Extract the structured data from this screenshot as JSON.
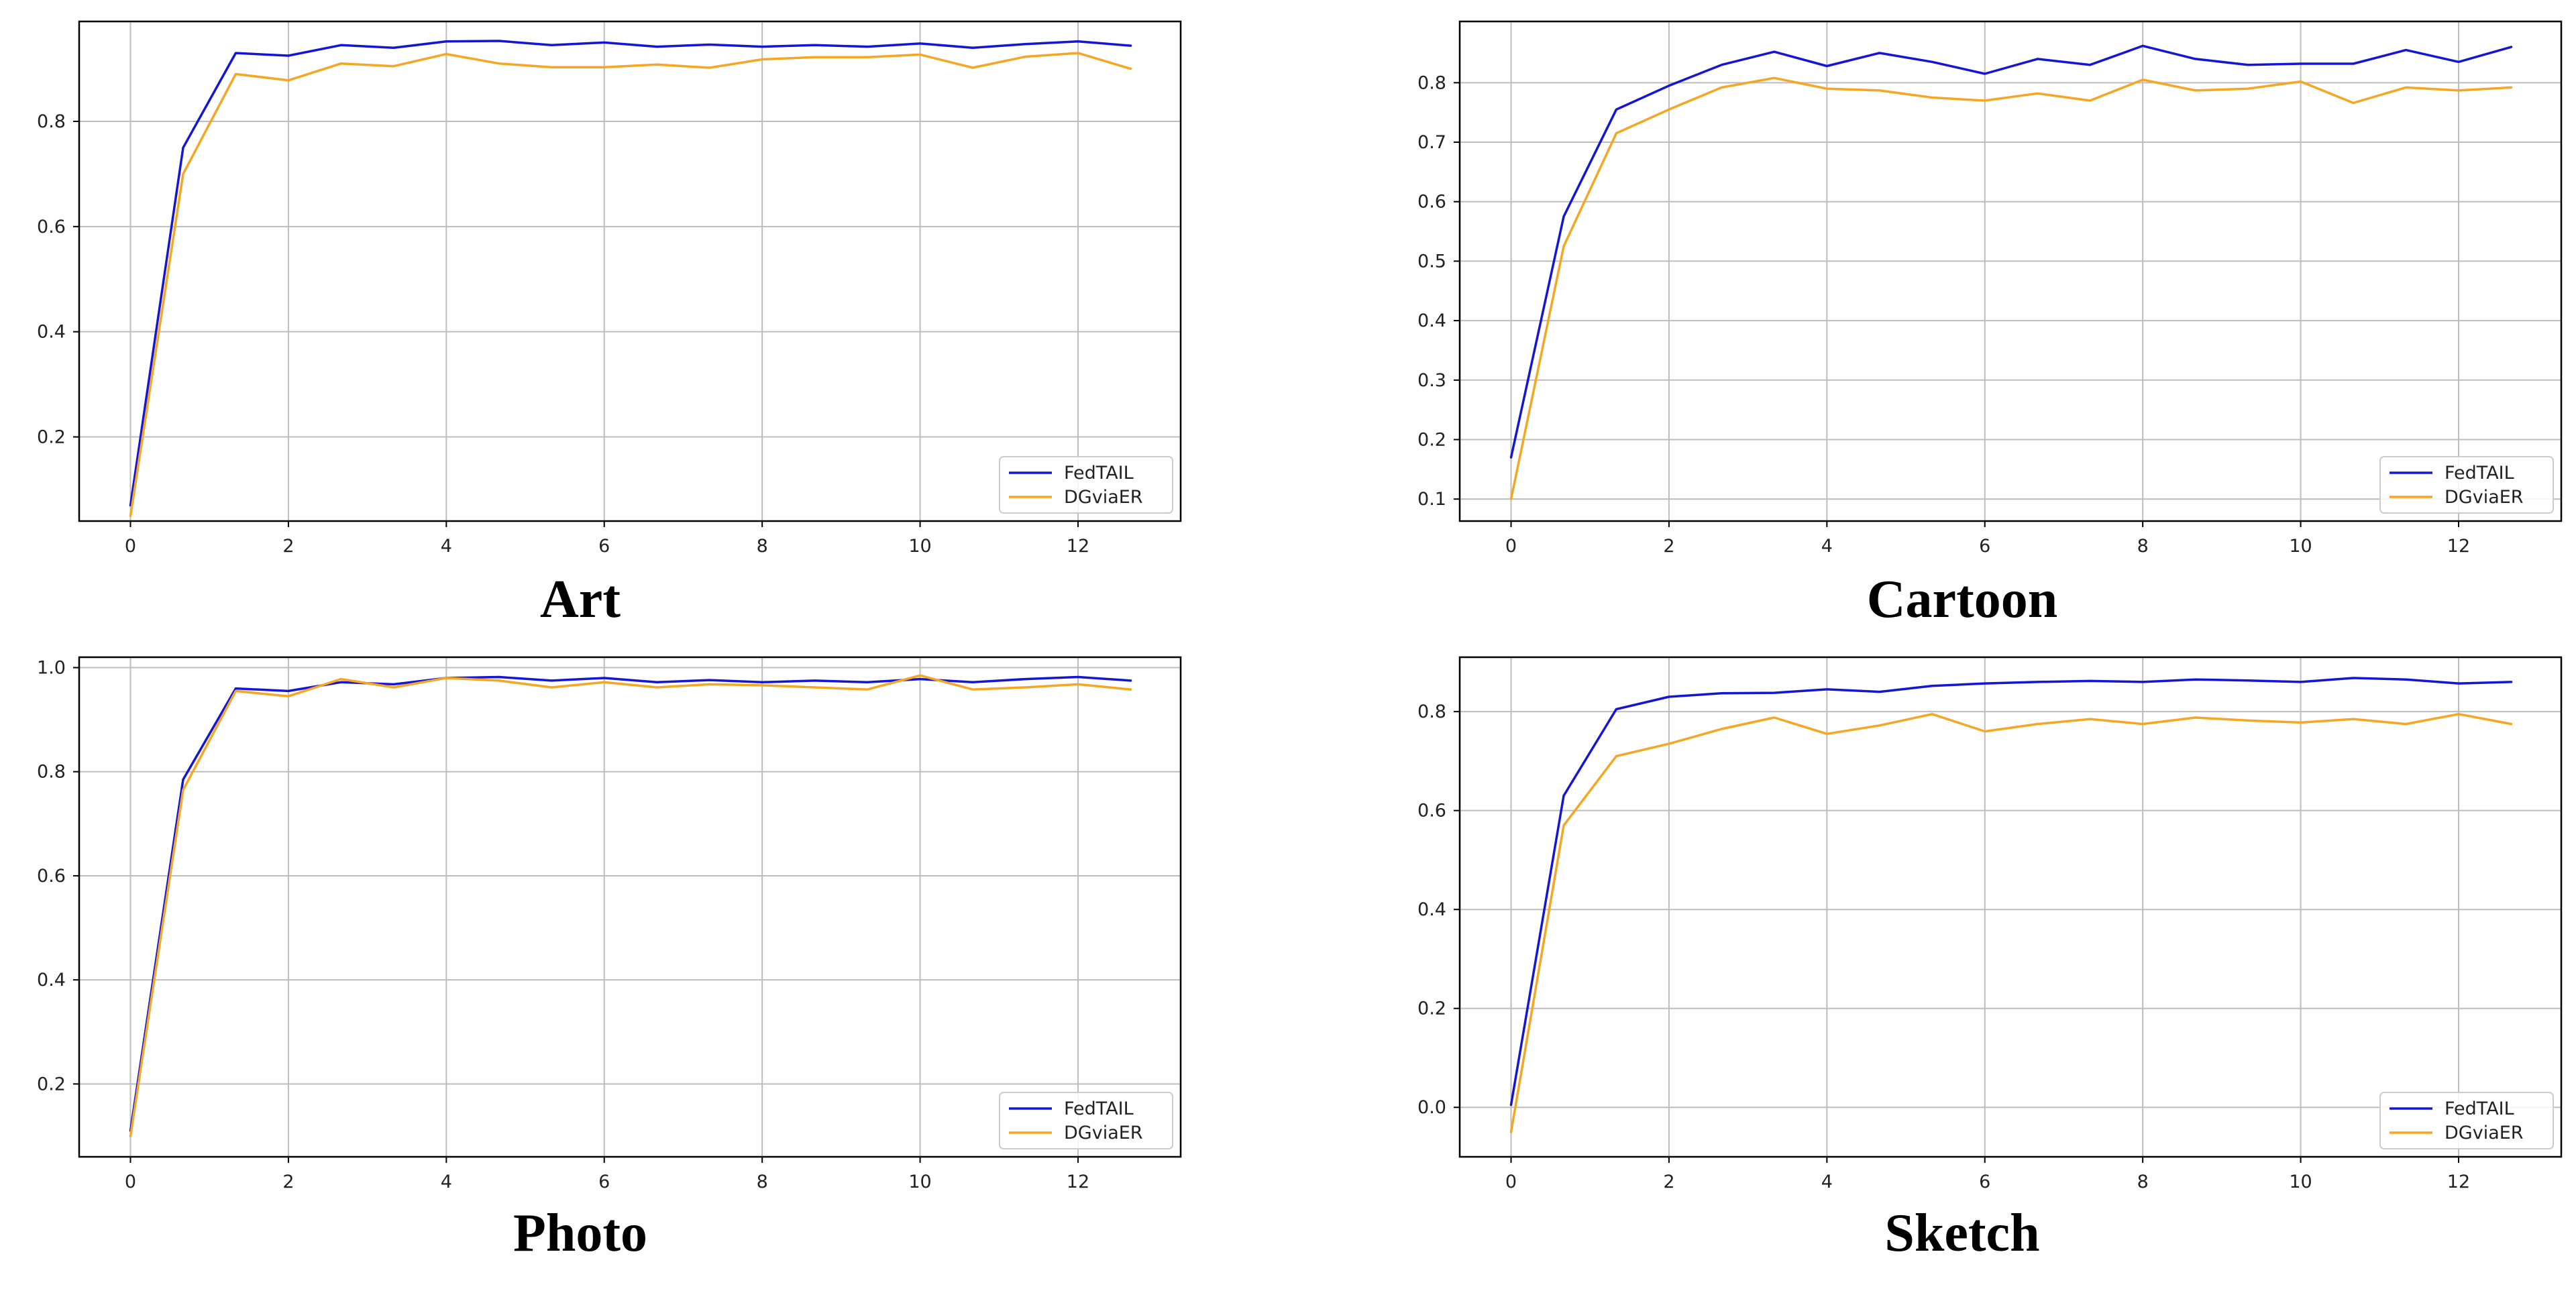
{
  "colors": {
    "fedtail": "#1515d6",
    "dgviaer": "#f5a623",
    "grid": "#bdbdbd",
    "axis": "#000000"
  },
  "chart_data": [
    {
      "type": "line",
      "title": "Art",
      "xlabel": "",
      "ylabel": "",
      "xlim": [
        -0.65,
        13.3
      ],
      "ylim": [
        0.04,
        0.99
      ],
      "xticks": [
        "0",
        "2",
        "4",
        "6",
        "8",
        "10",
        "12"
      ],
      "yticks": [
        "0.2",
        "0.4",
        "0.6",
        "0.8"
      ],
      "x": [
        0,
        0.667,
        1.333,
        2,
        2.667,
        3.333,
        4,
        4.667,
        5.333,
        6,
        6.667,
        7.333,
        8,
        8.667,
        9.333,
        10,
        10.667,
        11.333,
        12,
        12.667
      ],
      "series": [
        {
          "name": "FedTAIL",
          "values": [
            0.07,
            0.75,
            0.93,
            0.925,
            0.945,
            0.94,
            0.952,
            0.953,
            0.945,
            0.95,
            0.942,
            0.946,
            0.942,
            0.945,
            0.942,
            0.948,
            0.94,
            0.947,
            0.952,
            0.944
          ]
        },
        {
          "name": "DGviaER",
          "values": [
            0.05,
            0.7,
            0.89,
            0.878,
            0.91,
            0.905,
            0.928,
            0.91,
            0.903,
            0.903,
            0.908,
            0.902,
            0.918,
            0.922,
            0.922,
            0.927,
            0.902,
            0.923,
            0.93,
            0.9
          ]
        }
      ],
      "legend": "lower-right"
    },
    {
      "type": "line",
      "title": "Cartoon",
      "xlabel": "",
      "ylabel": "",
      "xlim": [
        -0.65,
        13.3
      ],
      "ylim": [
        0.063,
        0.903
      ],
      "xticks": [
        "0",
        "2",
        "4",
        "6",
        "8",
        "10",
        "12"
      ],
      "yticks": [
        "0.1",
        "0.2",
        "0.3",
        "0.4",
        "0.5",
        "0.6",
        "0.7",
        "0.8"
      ],
      "x": [
        0,
        0.667,
        1.333,
        2,
        2.667,
        3.333,
        4,
        4.667,
        5.333,
        6,
        6.667,
        7.333,
        8,
        8.667,
        9.333,
        10,
        10.667,
        11.333,
        12,
        12.667
      ],
      "series": [
        {
          "name": "FedTAIL",
          "values": [
            0.17,
            0.575,
            0.755,
            0.795,
            0.83,
            0.852,
            0.828,
            0.85,
            0.835,
            0.815,
            0.84,
            0.83,
            0.862,
            0.84,
            0.83,
            0.832,
            0.832,
            0.855,
            0.835,
            0.86
          ]
        },
        {
          "name": "DGviaER",
          "values": [
            0.1,
            0.525,
            0.715,
            0.755,
            0.792,
            0.808,
            0.79,
            0.787,
            0.775,
            0.77,
            0.782,
            0.77,
            0.805,
            0.787,
            0.79,
            0.802,
            0.766,
            0.792,
            0.787,
            0.792
          ]
        }
      ],
      "legend": "lower-right"
    },
    {
      "type": "line",
      "title": "Photo",
      "xlabel": "",
      "ylabel": "",
      "xlim": [
        -0.65,
        13.3
      ],
      "ylim": [
        0.06,
        1.02
      ],
      "xticks": [
        "0",
        "2",
        "4",
        "6",
        "8",
        "10",
        "12"
      ],
      "yticks": [
        "0.2",
        "0.4",
        "0.6",
        "0.8",
        "1.0"
      ],
      "x": [
        0,
        0.667,
        1.333,
        2,
        2.667,
        3.333,
        4,
        4.667,
        5.333,
        6,
        6.667,
        7.333,
        8,
        8.667,
        9.333,
        10,
        10.667,
        11.333,
        12,
        12.667
      ],
      "series": [
        {
          "name": "FedTAIL",
          "values": [
            0.11,
            0.785,
            0.96,
            0.955,
            0.972,
            0.968,
            0.98,
            0.982,
            0.975,
            0.98,
            0.972,
            0.976,
            0.972,
            0.975,
            0.972,
            0.978,
            0.972,
            0.978,
            0.982,
            0.975
          ]
        },
        {
          "name": "DGviaER",
          "values": [
            0.1,
            0.765,
            0.955,
            0.945,
            0.978,
            0.962,
            0.98,
            0.975,
            0.962,
            0.972,
            0.962,
            0.968,
            0.966,
            0.962,
            0.958,
            0.985,
            0.958,
            0.962,
            0.968,
            0.958
          ]
        }
      ],
      "legend": "lower-right"
    },
    {
      "type": "line",
      "title": "Sketch",
      "xlabel": "",
      "ylabel": "",
      "xlim": [
        -0.65,
        13.3
      ],
      "ylim": [
        -0.1,
        0.91
      ],
      "xticks": [
        "0",
        "2",
        "4",
        "6",
        "8",
        "10",
        "12"
      ],
      "yticks": [
        "0.0",
        "0.2",
        "0.4",
        "0.6",
        "0.8"
      ],
      "x": [
        0,
        0.667,
        1.333,
        2,
        2.667,
        3.333,
        4,
        4.667,
        5.333,
        6,
        6.667,
        7.333,
        8,
        8.667,
        9.333,
        10,
        10.667,
        11.333,
        12,
        12.667
      ],
      "series": [
        {
          "name": "FedTAIL",
          "values": [
            0.005,
            0.63,
            0.805,
            0.83,
            0.837,
            0.838,
            0.845,
            0.84,
            0.852,
            0.857,
            0.86,
            0.862,
            0.86,
            0.865,
            0.863,
            0.86,
            0.868,
            0.865,
            0.857,
            0.86
          ]
        },
        {
          "name": "DGviaER",
          "values": [
            -0.05,
            0.57,
            0.71,
            0.735,
            0.765,
            0.788,
            0.755,
            0.772,
            0.795,
            0.76,
            0.775,
            0.785,
            0.775,
            0.788,
            0.782,
            0.778,
            0.785,
            0.775,
            0.795,
            0.775
          ]
        }
      ],
      "legend": "lower-right"
    }
  ]
}
